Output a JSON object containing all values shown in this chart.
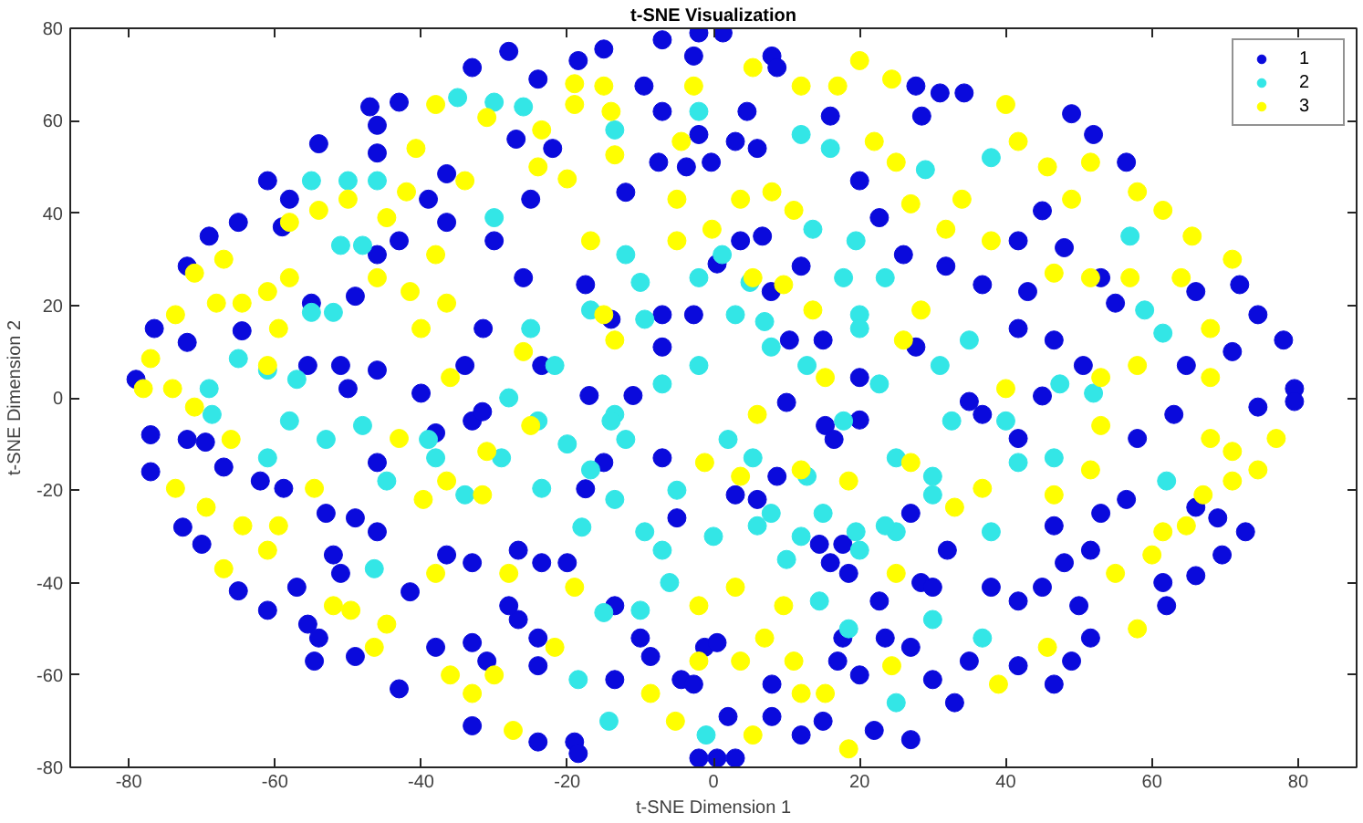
{
  "chart_data": {
    "type": "scatter",
    "title": "t-SNE Visualization",
    "xlabel": "t-SNE Dimension 1",
    "ylabel": "t-SNE Dimension 2",
    "xlim": [
      -88,
      88
    ],
    "ylim": [
      -80,
      80
    ],
    "xticks": [
      -80,
      -60,
      -40,
      -20,
      0,
      20,
      40,
      60,
      80
    ],
    "yticks": [
      -80,
      -60,
      -40,
      -20,
      0,
      20,
      40,
      60,
      80
    ],
    "grid": false,
    "legend": "top right",
    "marker": "circle",
    "series": [
      {
        "name": "1",
        "color": "#0a0adc",
        "x": [
          -79,
          -76.5,
          -72,
          -72,
          -69,
          -65,
          -61,
          -59,
          -58,
          -54,
          -47,
          -46,
          -43,
          -46,
          -36.5,
          -33,
          -28,
          -24,
          -27,
          -22,
          -25,
          -36.5,
          -39,
          -43,
          -46,
          -49,
          -51,
          -46,
          -50,
          -55,
          -55.5,
          -64.5,
          -31.5,
          -26,
          -30,
          -23.5,
          -17.5,
          -18.5,
          -15,
          -9.5,
          -7,
          -12,
          -7.5,
          -7,
          -17,
          -11,
          -2,
          -7,
          -2.7,
          8,
          8.7,
          1.3,
          -0.3,
          3,
          4.6,
          -2,
          16,
          28.5,
          31,
          34.3,
          27.7,
          49,
          52,
          56.5,
          20,
          22.7,
          26,
          31.8,
          36.8,
          43,
          45,
          48,
          41.7,
          53,
          55,
          66,
          72,
          74.5,
          78,
          71,
          64.7,
          79.5,
          46.6,
          41.7,
          50.6,
          45,
          12,
          15,
          10.4,
          20,
          -3.7,
          6,
          3.7,
          -2.7,
          35,
          -77,
          -77,
          -72,
          -69.5,
          -67,
          -72.6,
          -70,
          -65,
          -61,
          -57,
          -55.5,
          -54,
          -52,
          -53,
          -49,
          -46,
          -51,
          -49,
          -54.6,
          -62,
          -58.8,
          -43,
          -41.5,
          -36.5,
          -33,
          -38,
          -33,
          -31,
          -26.7,
          -24,
          -28,
          -33,
          -24,
          -19,
          -18.5,
          -24,
          -23.5,
          -20,
          -17.5,
          -15,
          -13.5,
          -10,
          -8.6,
          -4.4,
          -13.5,
          -38,
          -46,
          -33,
          -5,
          -2,
          0.5,
          3,
          -1.2,
          2,
          8,
          12,
          15,
          22,
          27,
          17,
          20,
          17.7,
          23.5,
          27,
          30,
          33,
          35,
          22.7,
          16,
          14.5,
          17.7,
          18.5,
          28.4,
          32,
          38,
          41.7,
          45,
          48,
          51.6,
          50,
          51.6,
          49,
          41.7,
          46.6,
          46.6,
          53,
          56.5,
          61.5,
          62,
          66,
          69.6,
          72.8,
          69,
          66,
          58,
          63,
          74.5,
          79.5,
          41.7,
          36.8,
          15.3,
          20,
          8.7,
          6,
          -2.7,
          0.5,
          8,
          27,
          30,
          6.7,
          7.9,
          0.5,
          -7,
          10,
          16.5,
          27.7,
          -14,
          -34,
          -31.6,
          -40,
          -7,
          3,
          -26.7
        ],
        "values": [
          4,
          15,
          12,
          28.5,
          35,
          38,
          47,
          37,
          43,
          55,
          63,
          53,
          64,
          59,
          48.5,
          71.5,
          75,
          69,
          56,
          54,
          43,
          38,
          43,
          34,
          31,
          22,
          7,
          6,
          2,
          20.5,
          7,
          14.5,
          15,
          26,
          34,
          7,
          24.5,
          73,
          75.5,
          67.5,
          62,
          44.5,
          51,
          18,
          0.5,
          0.5,
          79,
          77.5,
          74,
          74,
          71.5,
          79,
          51,
          55.5,
          62,
          57,
          61,
          61,
          66,
          66,
          67.5,
          61.5,
          57,
          51,
          47,
          39,
          31,
          28.5,
          24.5,
          23,
          40.5,
          32.5,
          34,
          26,
          20.5,
          23,
          24.5,
          18,
          12.5,
          10,
          7,
          2,
          12.5,
          15,
          7,
          0.4,
          28.5,
          12.5,
          12.5,
          4.4,
          50,
          54,
          34,
          18,
          -0.8,
          -8,
          -16,
          -9,
          -9.6,
          -15,
          -28,
          -31.7,
          -41.8,
          -46,
          -41,
          -49,
          -52,
          -34,
          -25,
          -26,
          -29,
          -38,
          -56,
          -57,
          -18,
          -19.6,
          -63,
          -42,
          -34,
          -35.7,
          -54,
          -53,
          -57,
          -48,
          -52,
          -45,
          -71,
          -74.5,
          -74.5,
          -77,
          -58,
          -35.7,
          -35.7,
          -19.7,
          -14,
          -45,
          -52,
          -56,
          -61,
          -61,
          -7.6,
          -14,
          -5,
          -26,
          -78,
          -78,
          -78,
          -54,
          -69,
          -69,
          -73,
          -70,
          -72,
          -74,
          -57,
          -60,
          -52,
          -52,
          -54,
          -61,
          -66,
          -57,
          -44,
          -35.7,
          -31.7,
          -31.7,
          -38,
          -40,
          -33,
          -41,
          -44,
          -41,
          -35.7,
          -33,
          -45,
          -52,
          -57,
          -58,
          -62,
          -27.7,
          -25,
          -22,
          -40,
          -45,
          -38.5,
          -34,
          -29,
          -26,
          -23.7,
          -8.8,
          -3.6,
          -2,
          -0.8,
          -8.8,
          -3.6,
          -6,
          -4.8,
          -17,
          -22,
          -62,
          -53,
          -62,
          -25,
          -41,
          35,
          23,
          29,
          11,
          -1,
          -9,
          11,
          17,
          7,
          -3,
          1,
          -13,
          -21,
          -33
        ]
      },
      {
        "name": "2",
        "color": "#33e6e6",
        "x": [
          -55,
          -50,
          -46,
          -35,
          -30,
          -26,
          -51,
          -48,
          -30,
          -55,
          -52,
          -65,
          -61,
          -57,
          -69,
          -68.6,
          -61,
          -58,
          -53,
          -48,
          -44.7,
          -38,
          -46.4,
          -23.5,
          -16.8,
          -12,
          -13.5,
          -7,
          -13.5,
          -18.5,
          -14.3,
          -10,
          -6,
          -15,
          -2,
          12,
          16,
          38,
          29,
          57,
          13.6,
          19.5,
          23.5,
          17.8,
          1.2,
          3,
          -2,
          7,
          20,
          35,
          31,
          59,
          61.5,
          -21.7,
          -16.8,
          -9.4,
          -24,
          -14,
          -7,
          -2,
          7.9,
          12.8,
          20,
          22.7,
          17.8,
          5.4,
          12.8,
          25,
          30,
          32.6,
          40,
          47.4,
          52,
          20,
          25,
          7.9,
          -9.4,
          -34,
          -29,
          -39,
          2,
          12,
          6,
          19.5,
          23.5,
          14.5,
          18.5,
          30,
          36.8,
          41.7,
          46.6,
          62,
          25,
          -1,
          30,
          38,
          -13.5,
          -12,
          -20,
          -5,
          0,
          10,
          -25,
          -10,
          5,
          15,
          -28,
          -18
        ],
        "values": [
          47,
          47,
          47,
          65,
          64,
          63,
          33,
          33,
          39,
          18.5,
          18.5,
          8.5,
          6,
          4,
          2,
          -3.6,
          -13,
          -5,
          -9,
          -6,
          -18,
          -13,
          -37,
          -19.6,
          -15.6,
          -9,
          -3.6,
          -33,
          -22,
          -61,
          -70,
          -46,
          -40,
          -46.5,
          62,
          57,
          54,
          52,
          49.4,
          35,
          36.5,
          34,
          26,
          26,
          31,
          18,
          26,
          16.5,
          18,
          12.5,
          7,
          19,
          14,
          7,
          19,
          17,
          -5,
          -5,
          3,
          7,
          11,
          7,
          15,
          3,
          -5,
          -13,
          -17,
          -13,
          -21,
          -5,
          -5,
          3,
          1,
          -33,
          -29,
          -25,
          -29,
          -21,
          -13,
          -9,
          -9,
          -30,
          -27.7,
          -29,
          -27.7,
          -44,
          -50,
          -48,
          -52,
          -14,
          -13,
          -18,
          -66,
          -73,
          -17,
          -29,
          58,
          31,
          -10,
          -20,
          -30,
          -35,
          15,
          25,
          25,
          -25,
          0,
          -28
        ]
      },
      {
        "name": "3",
        "color": "#ffff00",
        "x": [
          -78,
          -77,
          -71,
          -68,
          -61,
          -67,
          -58,
          -54,
          -50,
          -42,
          -44.7,
          -40.7,
          -38,
          -31,
          -23.5,
          -19,
          -19,
          -14,
          -20,
          -24,
          -34,
          -38,
          -36.5,
          -41.5,
          -46,
          -58,
          -59.5,
          -64.5,
          -61,
          -73.6,
          -74,
          -16.8,
          -15,
          -13.5,
          -26,
          -36,
          -40,
          -5,
          -5,
          -4.4,
          -13.5,
          -15,
          20,
          17,
          24.4,
          22,
          25,
          40,
          41.7,
          45.7,
          49,
          51.6,
          58,
          61.5,
          65.5,
          71,
          64,
          68,
          57,
          51.6,
          46.6,
          38,
          31.8,
          34,
          27,
          8,
          11,
          3.7,
          -0.2,
          5.4,
          9.6,
          13.6,
          28.4,
          26,
          15.3,
          40,
          53,
          58,
          68,
          12,
          5.4,
          -2.7,
          -73.6,
          -69.4,
          -64.4,
          -67,
          -61,
          -59.5,
          -54.6,
          -66,
          -71,
          -52,
          -49.6,
          -44.7,
          -46.4,
          -38,
          -39.7,
          -36.5,
          -31.6,
          -33,
          -36,
          -30,
          -27.4,
          -21.7,
          -19,
          -28,
          -8.6,
          -5.2,
          -43,
          -31,
          -25,
          -2,
          3.7,
          7,
          11,
          12,
          5.4,
          18.5,
          15.3,
          -2,
          3,
          9.6,
          25,
          24.4,
          39,
          45.7,
          58,
          55,
          60,
          61.5,
          64.7,
          67,
          71,
          74.5,
          77,
          71,
          68,
          53,
          51.6,
          46.6,
          36.8,
          33,
          27,
          18.5,
          12,
          3.7,
          -1.2,
          6
        ],
        "values": [
          2,
          8.5,
          27,
          20.5,
          23,
          30,
          38,
          40.6,
          43,
          44.6,
          39,
          54,
          63.5,
          60.7,
          58,
          63.5,
          68,
          62,
          47.4,
          50,
          47,
          31,
          20.5,
          23,
          26,
          26,
          15,
          20.5,
          7,
          18,
          2,
          34,
          18,
          12.5,
          10,
          4.4,
          15,
          34,
          43,
          55.5,
          52.6,
          67.5,
          73,
          67.5,
          69,
          55.5,
          51,
          63.5,
          55.5,
          50,
          43,
          51,
          44.6,
          40.6,
          35,
          30,
          26,
          15,
          26,
          26,
          27,
          34,
          36.5,
          43,
          42,
          44.6,
          40.6,
          43,
          36.5,
          26,
          24.5,
          19,
          19,
          12.5,
          4.4,
          2,
          4.4,
          7,
          4.4,
          67.5,
          71.5,
          67.5,
          -19.6,
          -23.7,
          -27.7,
          -37,
          -33,
          -27.7,
          -19.6,
          -9,
          -2,
          -45,
          -46,
          -49,
          -54,
          -38,
          -22,
          -18,
          -21,
          -64,
          -60,
          -60,
          -72,
          -54,
          -41,
          -38,
          -64,
          -70,
          -8.8,
          -11.6,
          -6,
          -57,
          -57,
          -52,
          -57,
          -64,
          -73,
          -76,
          -64,
          -45,
          -41,
          -45,
          -38,
          -58,
          -62,
          -54,
          -50,
          -38,
          -34,
          -29,
          -27.7,
          -21,
          -18,
          -15.6,
          -8.8,
          -11.6,
          -8.8,
          -6,
          -15.6,
          -21,
          -19.6,
          -23.7,
          -14,
          -18,
          -15.6,
          -17,
          -14,
          -3.6
        ]
      }
    ]
  }
}
